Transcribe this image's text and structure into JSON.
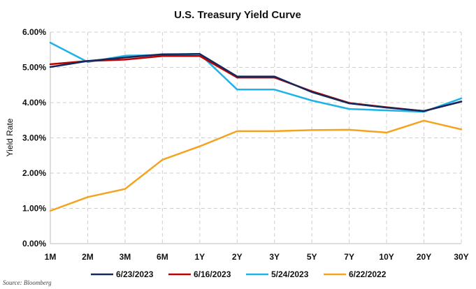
{
  "chart_data": {
    "type": "line",
    "title": "U.S. Treasury Yield Curve",
    "xlabel": "",
    "ylabel": "Yield Rate",
    "categories": [
      "1M",
      "2M",
      "3M",
      "6M",
      "1Y",
      "2Y",
      "3Y",
      "5Y",
      "7Y",
      "10Y",
      "20Y",
      "30Y"
    ],
    "ylim": [
      0,
      6
    ],
    "yticks": [
      "0.00%",
      "1.00%",
      "2.00%",
      "3.00%",
      "4.00%",
      "5.00%",
      "6.00%"
    ],
    "grid": true,
    "legend_position": "bottom",
    "series": [
      {
        "name": "6/23/2023",
        "color": "#14285a",
        "values": [
          5.01,
          5.18,
          5.28,
          5.37,
          5.38,
          4.74,
          4.74,
          4.3,
          3.98,
          3.86,
          3.76,
          4.03
        ]
      },
      {
        "name": "6/16/2023",
        "color": "#c00000",
        "values": [
          5.09,
          5.18,
          5.22,
          5.32,
          5.32,
          4.71,
          4.71,
          4.32,
          3.99,
          3.87,
          3.76,
          4.03
        ]
      },
      {
        "name": "5/24/2023",
        "color": "#1eb3e8",
        "values": [
          5.7,
          5.15,
          5.33,
          5.35,
          5.38,
          4.37,
          4.37,
          4.06,
          3.82,
          3.78,
          3.74,
          4.12
        ]
      },
      {
        "name": "6/22/2022",
        "color": "#f5a21e",
        "values": [
          0.93,
          1.32,
          1.55,
          2.38,
          2.76,
          3.19,
          3.19,
          3.22,
          3.23,
          3.15,
          3.49,
          3.24
        ]
      }
    ],
    "source": "Source: Bloomberg"
  }
}
